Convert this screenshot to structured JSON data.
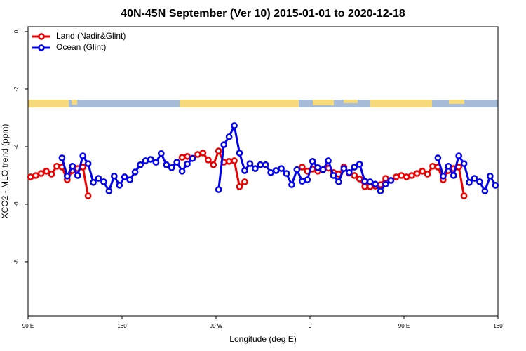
{
  "chart_data": {
    "type": "line",
    "title": "40N-45N September (Ver 10)   2015-01-01 to 2020-12-18",
    "x_label": "Longitude (deg E)",
    "y_label": "XCO2 - MLO trend (ppm)",
    "xlim": [
      90,
      540
    ],
    "xticks": [
      {
        "value": 90,
        "label": "90 E"
      },
      180,
      {
        "value": 270,
        "label": "90 W"
      },
      {
        "value": 360,
        "label": "0"
      },
      {
        "value": 450,
        "label": "90 E"
      },
      {
        "value": 540,
        "label": "180"
      }
    ],
    "ylim": [
      -9.88,
      0.17
    ],
    "yticks": [
      0,
      -2,
      -4,
      -6,
      -8
    ],
    "legend": "top-left",
    "series": [
      {
        "name": "Land (Nadir&Glint)",
        "color": "#ee0000",
        "x": [
          92.5,
          97.5,
          102.5,
          107.5,
          112.5,
          117.5,
          122.5,
          127.5,
          132.5,
          137.5,
          142.5,
          147.5,
          152.5,
          237.5,
          242.5,
          247.5,
          252.5,
          257.5,
          262.5,
          267.5,
          272.5,
          277.5,
          282.5,
          287.5,
          292.5,
          297.5,
          302.5,
          352.5,
          357.5,
          362.5,
          367.5,
          372.5,
          377.5,
          382.5,
          387.5,
          392.5,
          397.5,
          402.5,
          407.5,
          412.5,
          417.5,
          422.5,
          427.5,
          432.5,
          437.5,
          442.5,
          447.5,
          452.5,
          457.5,
          462.5,
          467.5,
          472.5,
          477.5,
          482.5,
          487.5,
          492.5,
          497.5,
          502.5,
          507.5
        ],
        "values": [
          -5.05,
          -5.0,
          -4.93,
          -4.85,
          -4.95,
          -4.68,
          -4.71,
          -5.15,
          -4.83,
          -4.76,
          -4.71,
          -5.71,
          null,
          -4.37,
          -4.34,
          -4.4,
          -4.27,
          -4.22,
          -4.46,
          -4.63,
          -4.15,
          -4.54,
          -4.51,
          -4.49,
          -5.39,
          -5.22,
          null,
          -4.71,
          -4.85,
          -4.78,
          -4.85,
          -4.8,
          -4.75,
          -4.9,
          -4.95,
          -4.71,
          -4.92,
          -5.0,
          -5.12,
          -5.39,
          -5.39,
          -5.37,
          -5.32,
          -5.1,
          -5.17,
          -5.05,
          -5.0,
          -5.05,
          -5.0,
          -4.93,
          -4.85,
          -4.95,
          -4.68,
          -4.71,
          -5.15,
          -4.83,
          -4.76,
          -4.71,
          -5.71
        ]
      },
      {
        "name": "Ocean (Glint)",
        "color": "#0000ee",
        "x": [
          122.5,
          127.5,
          132.5,
          137.5,
          142.5,
          147.5,
          152.5,
          157.5,
          162.5,
          167.5,
          172.5,
          177.5,
          182.5,
          187.5,
          192.5,
          197.5,
          202.5,
          207.5,
          212.5,
          217.5,
          222.5,
          227.5,
          232.5,
          237.5,
          242.5,
          247.5,
          252.5,
          272.5,
          277.5,
          282.5,
          287.5,
          292.5,
          297.5,
          302.5,
          307.5,
          312.5,
          317.5,
          322.5,
          327.5,
          332.5,
          337.5,
          342.5,
          347.5,
          352.5,
          357.5,
          362.5,
          367.5,
          372.5,
          377.5,
          382.5,
          387.5,
          392.5,
          397.5,
          402.5,
          407.5,
          412.5,
          417.5,
          422.5,
          427.5,
          432.5,
          437.5,
          442.5,
          482.5,
          487.5,
          492.5,
          497.5,
          502.5,
          507.5,
          512.5,
          517.5,
          522.5,
          527.5,
          532.5,
          537.5
        ],
        "values": [
          -4.39,
          -5.02,
          -4.68,
          -5.0,
          -4.32,
          -4.59,
          -5.24,
          -5.1,
          -5.22,
          -5.54,
          -5.02,
          -5.34,
          -5.05,
          -5.15,
          -4.88,
          -4.63,
          -4.49,
          -4.44,
          -4.54,
          -4.24,
          -4.63,
          -4.73,
          -4.54,
          -4.85,
          -4.6,
          -4.41,
          null,
          -5.49,
          -3.93,
          -3.66,
          -3.27,
          -4.22,
          -4.83,
          -4.59,
          -4.76,
          -4.63,
          -4.63,
          -4.9,
          -4.83,
          -4.76,
          -4.93,
          -5.32,
          -4.8,
          -5.2,
          -5.15,
          -4.51,
          -4.73,
          -4.8,
          -4.49,
          -5.0,
          -5.22,
          -4.76,
          -4.9,
          -4.71,
          -4.61,
          -5.2,
          -5.22,
          -5.3,
          -5.54,
          -5.3,
          -5.17,
          null,
          -4.39,
          -5.02,
          -4.68,
          -5.0,
          -4.32,
          -4.59,
          -5.24,
          -5.1,
          -5.22,
          -5.54,
          -5.02,
          -5.34
        ]
      }
    ]
  }
}
